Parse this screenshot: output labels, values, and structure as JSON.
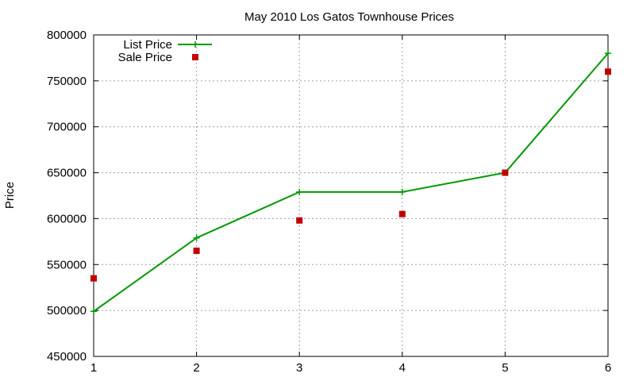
{
  "chart_data": {
    "type": "line",
    "title": "May 2010 Los Gatos Townhouse Prices",
    "xlabel": "",
    "ylabel": "Price",
    "xlim": [
      1,
      6
    ],
    "ylim": [
      450000,
      800000
    ],
    "xticks": [
      "1",
      "2",
      "3",
      "4",
      "5",
      "6"
    ],
    "yticks": [
      "450000",
      "500000",
      "550000",
      "600000",
      "650000",
      "700000",
      "750000",
      "800000"
    ],
    "grid": true,
    "legend_position": "top-left",
    "x": [
      1,
      2,
      3,
      4,
      5,
      6
    ],
    "series": [
      {
        "name": "List Price",
        "style": "line-plus",
        "color": "#009900",
        "values": [
          499000,
          579000,
          629000,
          629000,
          650000,
          780000
        ]
      },
      {
        "name": "Sale Price",
        "style": "square",
        "color": "#c00000",
        "values": [
          535000,
          565000,
          598000,
          605000,
          650000,
          760000
        ]
      }
    ]
  }
}
